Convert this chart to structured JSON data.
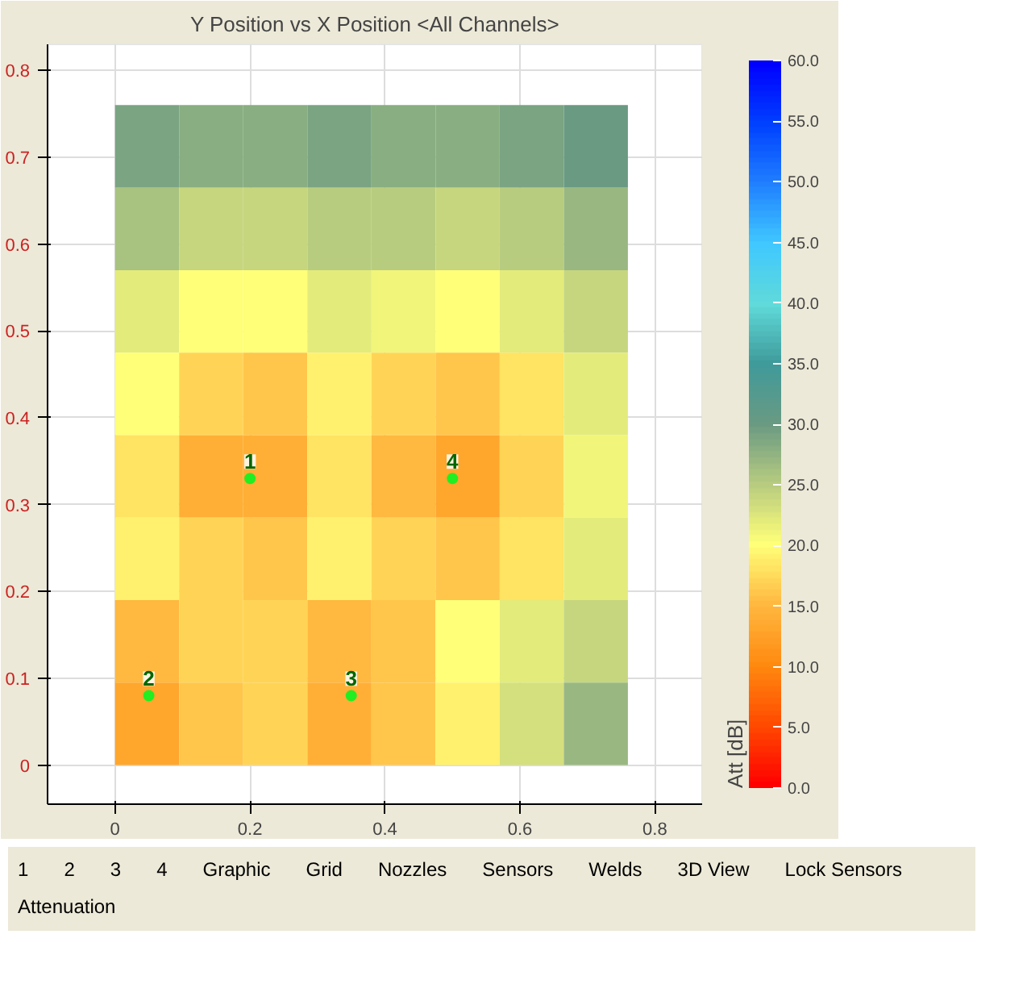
{
  "chart_data": {
    "type": "heatmap",
    "title": "Y Position vs X Position <All Channels>",
    "x": [
      0.0475,
      0.1425,
      0.2375,
      0.3325,
      0.4275,
      0.5225,
      0.6175,
      0.7125
    ],
    "y": [
      0.7125,
      0.6175,
      0.5225,
      0.4275,
      0.3325,
      0.2375,
      0.1425,
      0.0475
    ],
    "cells": [
      [
        29,
        28,
        28,
        29,
        28,
        28,
        29,
        30
      ],
      [
        26,
        24,
        24,
        25,
        25,
        24,
        25,
        27
      ],
      [
        22,
        20,
        20,
        22,
        21,
        20,
        22,
        24
      ],
      [
        20,
        17,
        16,
        19,
        17,
        16,
        18,
        22
      ],
      [
        18,
        14,
        14,
        18,
        15,
        13,
        17,
        21
      ],
      [
        19,
        17,
        16,
        19,
        17,
        16,
        18,
        22
      ],
      [
        15,
        17,
        17,
        15,
        16,
        20,
        22,
        24
      ],
      [
        13,
        16,
        17,
        14,
        16,
        19,
        23,
        27
      ]
    ],
    "xlim": [
      -0.1,
      0.87
    ],
    "ylim": [
      -0.045,
      0.83
    ],
    "xticks": [
      0,
      0.2,
      0.4,
      0.6,
      0.8
    ],
    "yticks": [
      0,
      0.1,
      0.2,
      0.3,
      0.4,
      0.5,
      0.6,
      0.7,
      0.8
    ],
    "clabel": "Att [dB]",
    "clim": [
      0,
      60
    ],
    "cticks": [
      {
        "value": 0,
        "label": "0.0"
      },
      {
        "value": 5,
        "label": "5.0"
      },
      {
        "value": 10,
        "label": "10.0"
      },
      {
        "value": 15,
        "label": "15.0"
      },
      {
        "value": 20,
        "label": "20.0"
      },
      {
        "value": 25,
        "label": "25.0"
      },
      {
        "value": 30,
        "label": "30.0"
      },
      {
        "value": 35,
        "label": "35.0"
      },
      {
        "value": 40,
        "label": "40.0"
      },
      {
        "value": 45,
        "label": "45.0"
      },
      {
        "value": 50,
        "label": "50.0"
      },
      {
        "value": 55,
        "label": "55.0"
      },
      {
        "value": 60,
        "label": "60.0"
      }
    ],
    "grid": true,
    "annotations": [
      {
        "text": "1",
        "x": 0.2,
        "y": 0.33
      },
      {
        "text": "4",
        "x": 0.5,
        "y": 0.33
      },
      {
        "text": "2",
        "x": 0.05,
        "y": 0.08
      },
      {
        "text": "3",
        "x": 0.35,
        "y": 0.08
      },
      "1",
      "2",
      "3",
      "4",
      "Graphic",
      "Grid",
      "Nozzles",
      "Sensors",
      "Welds",
      "3D View",
      "Lock Sensors",
      "Attenuation"
    ]
  }
}
